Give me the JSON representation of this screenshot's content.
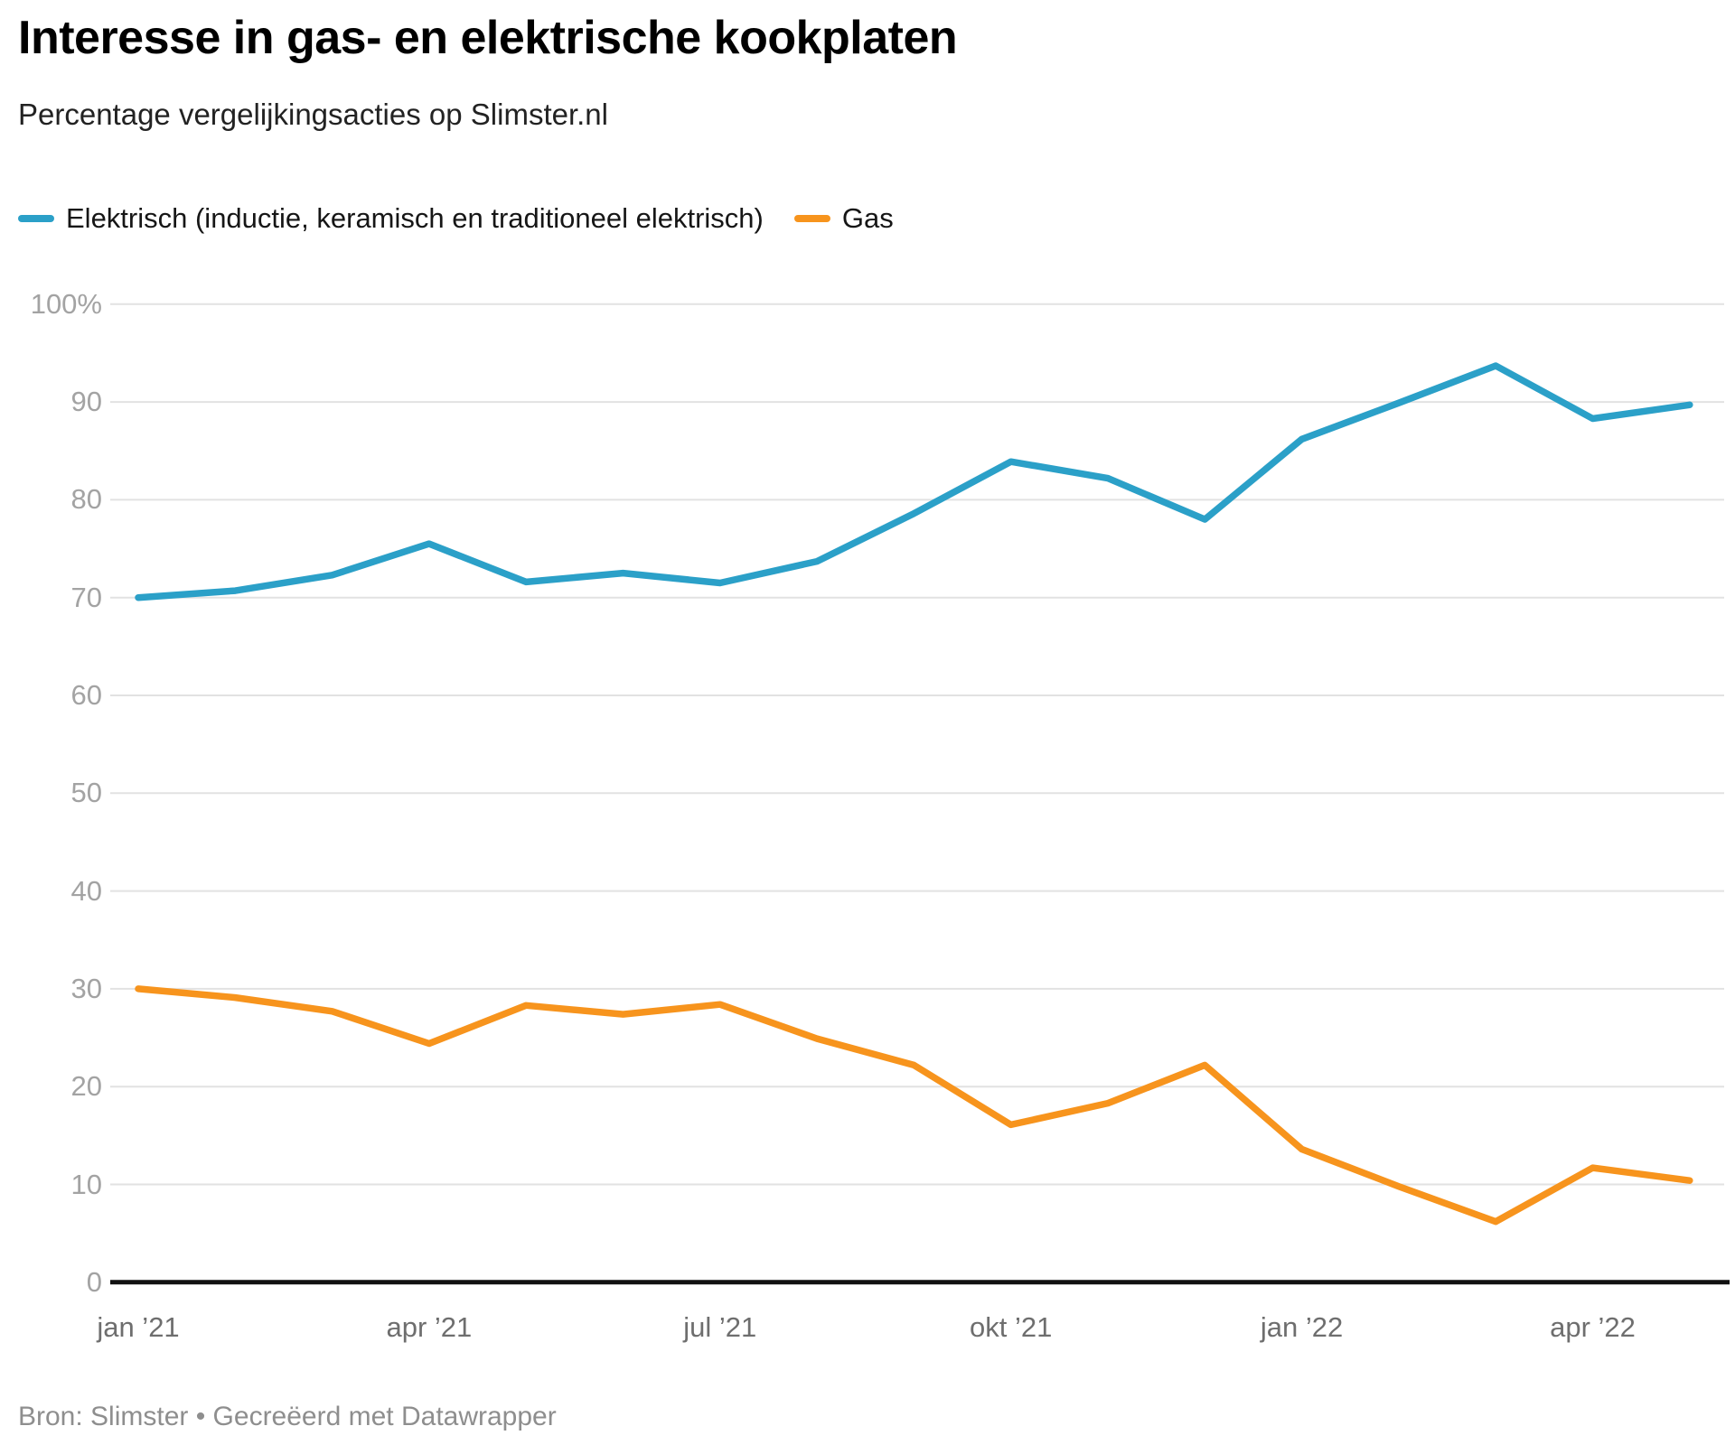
{
  "header": {
    "title": "Interesse in gas- en elektrische kookplaten",
    "subtitle": "Percentage vergelijkingsacties op Slimster.nl"
  },
  "legend": {
    "items": [
      {
        "label": "Elektrisch (inductie, keramisch en traditioneel elektrisch)",
        "color": "#2BA0C8"
      },
      {
        "label": "Gas",
        "color": "#F7941D"
      }
    ]
  },
  "chart_data": {
    "type": "line",
    "title": "Interesse in gas- en elektrische kookplaten",
    "subtitle": "Percentage vergelijkingsacties op Slimster.nl",
    "xlabel": "",
    "ylabel": "",
    "grid": true,
    "legend_position": "top",
    "ylim": [
      0,
      100
    ],
    "x": [
      "jan '21",
      "feb '21",
      "mrt '21",
      "apr '21",
      "mei '21",
      "jun '21",
      "jul '21",
      "aug '21",
      "sep '21",
      "okt '21",
      "nov '21",
      "dec '21",
      "jan '22",
      "feb '22",
      "mrt '22",
      "apr '22",
      "mei '22"
    ],
    "x_tick_labels": [
      "jan ’21",
      "apr ’21",
      "jul ’21",
      "okt ’21",
      "jan ’22",
      "apr ’22"
    ],
    "x_tick_indices": [
      0,
      3,
      6,
      9,
      12,
      15
    ],
    "y_ticks": [
      {
        "value": 100,
        "label": "100%"
      },
      {
        "value": 90,
        "label": "90"
      },
      {
        "value": 80,
        "label": "80"
      },
      {
        "value": 70,
        "label": "70"
      },
      {
        "value": 60,
        "label": "60"
      },
      {
        "value": 50,
        "label": "50"
      },
      {
        "value": 40,
        "label": "40"
      },
      {
        "value": 30,
        "label": "30"
      },
      {
        "value": 20,
        "label": "20"
      },
      {
        "value": 10,
        "label": "10"
      },
      {
        "value": 0,
        "label": "0"
      }
    ],
    "series": [
      {
        "name": "Elektrisch (inductie, keramisch en traditioneel elektrisch)",
        "color": "#2BA0C8",
        "values": [
          70.0,
          70.7,
          72.3,
          75.5,
          71.6,
          72.5,
          71.5,
          73.7,
          78.6,
          83.9,
          82.2,
          78.0,
          86.2,
          89.9,
          93.7,
          88.3,
          89.7
        ]
      },
      {
        "name": "Gas",
        "color": "#F7941D",
        "values": [
          30.0,
          29.1,
          27.7,
          24.4,
          28.3,
          27.4,
          28.4,
          24.9,
          22.2,
          16.1,
          18.3,
          22.2,
          13.6,
          9.8,
          6.2,
          11.7,
          10.4
        ]
      }
    ]
  },
  "footer": {
    "source": "Bron: Slimster • Gecreëerd met Datawrapper"
  }
}
